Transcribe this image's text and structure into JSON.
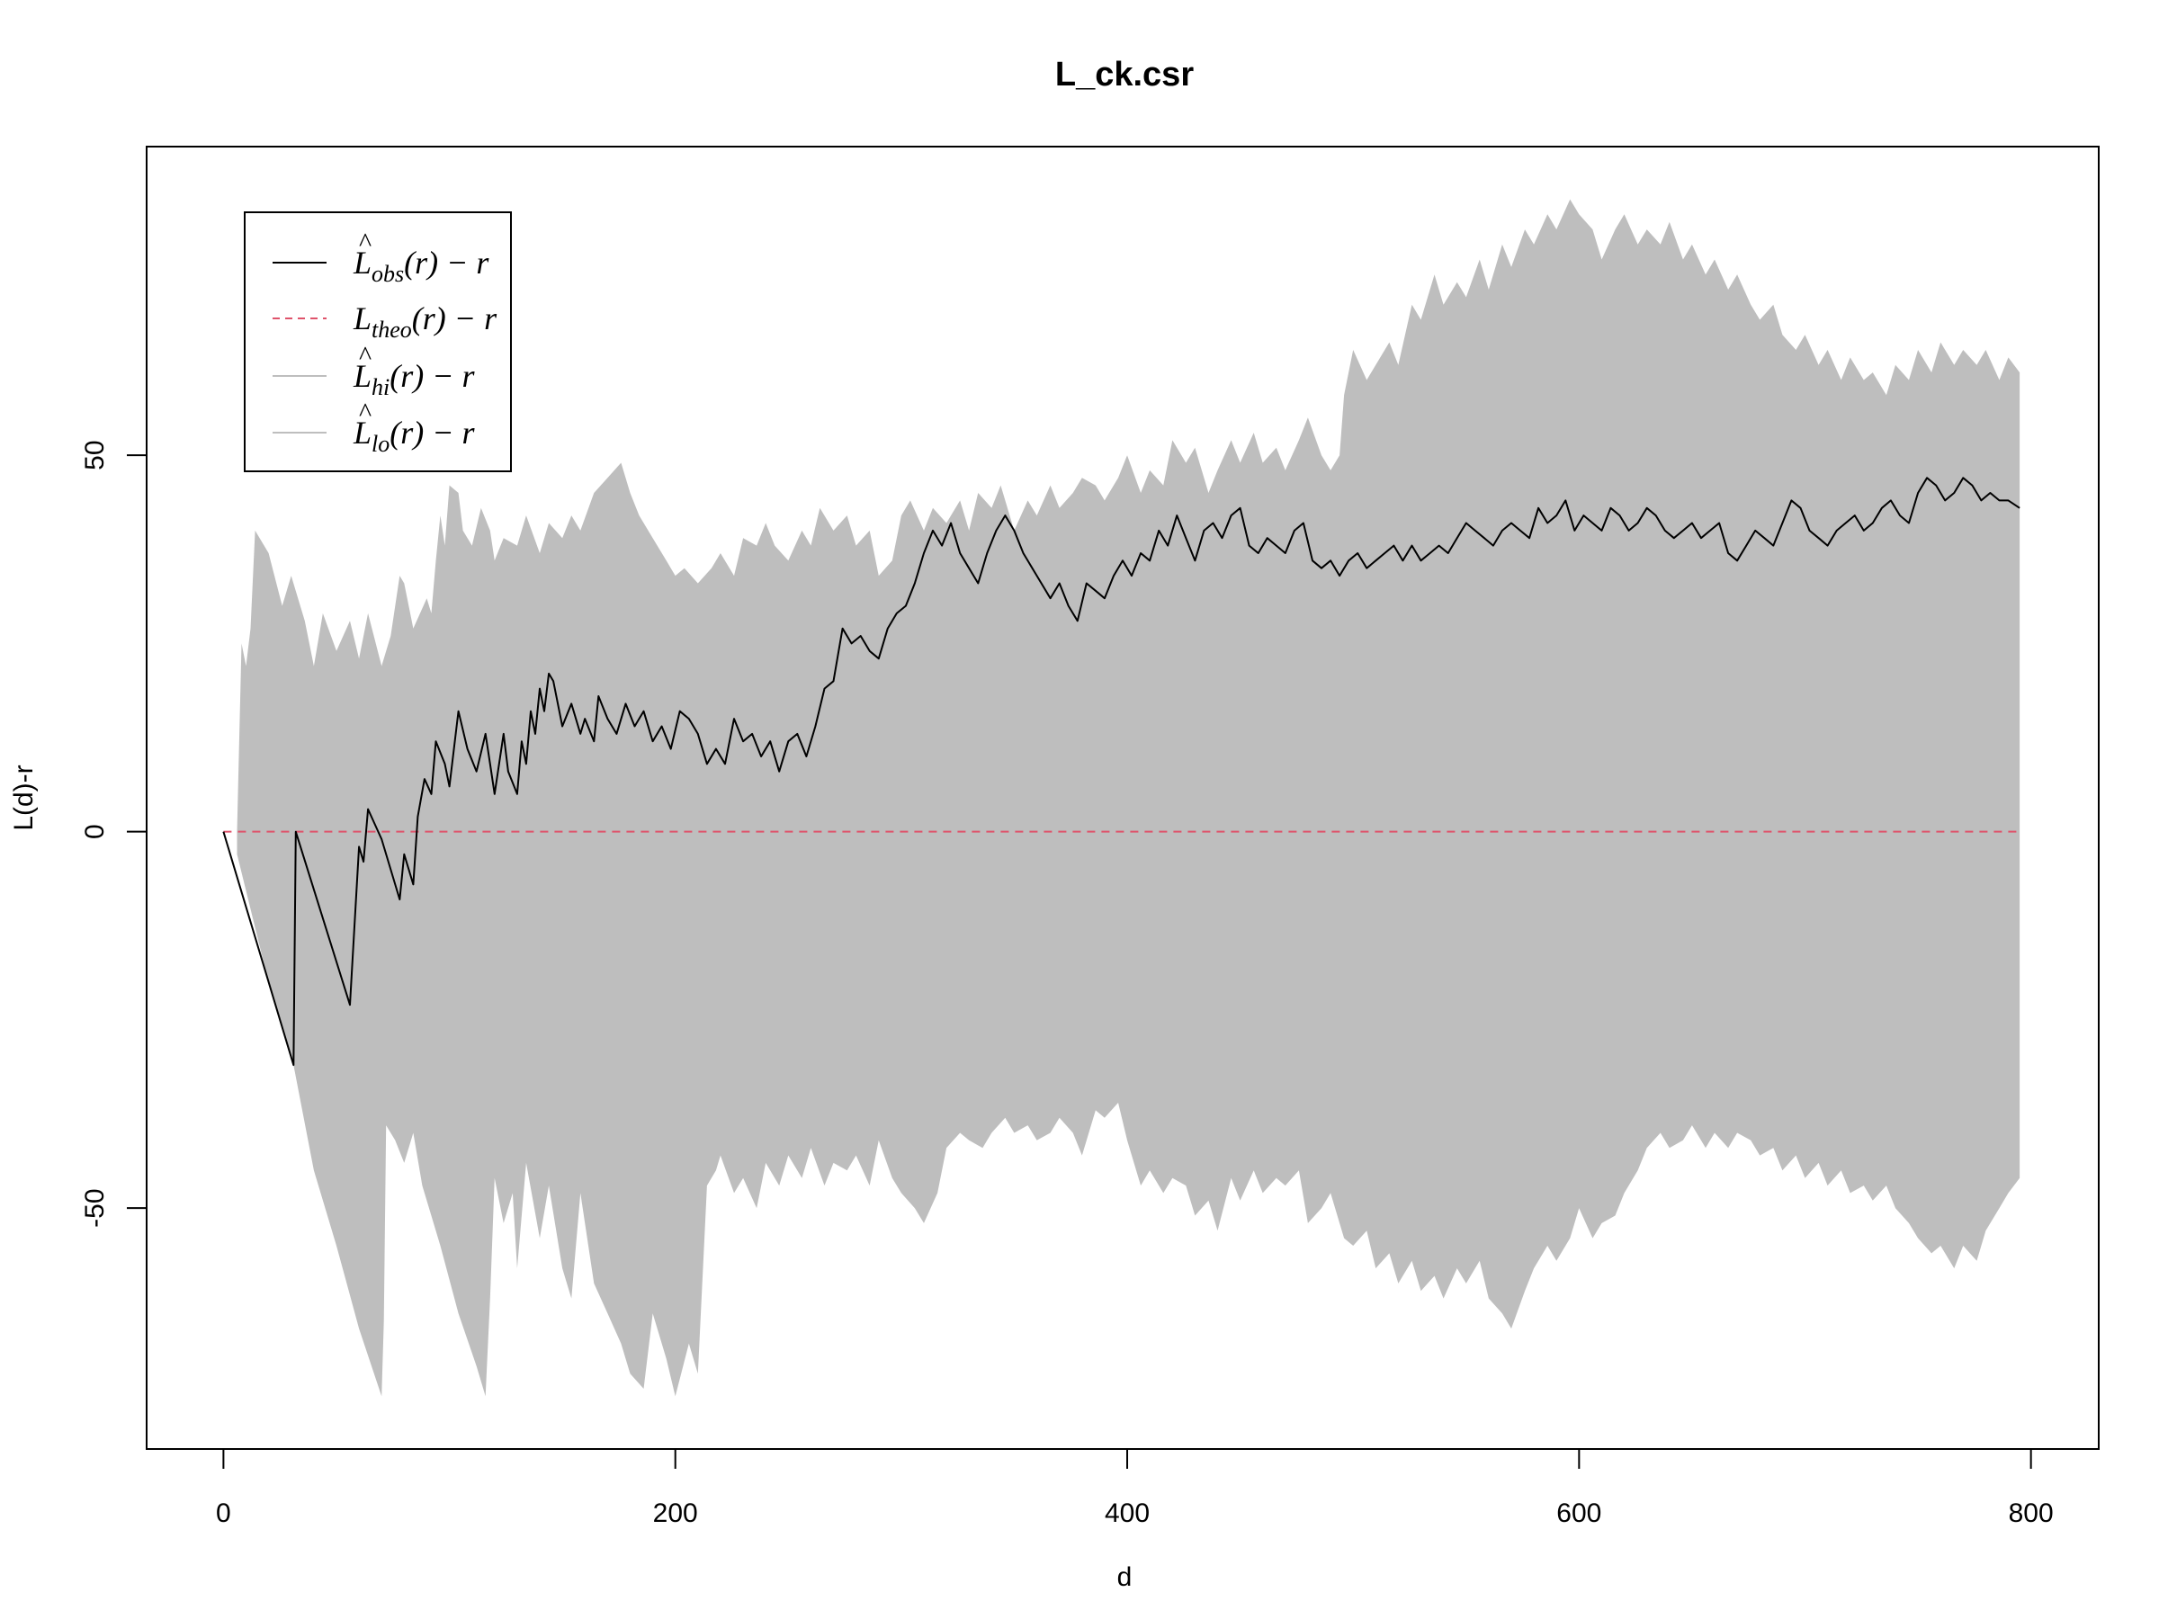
{
  "chart_data": {
    "type": "area",
    "title": "L_ck.csr",
    "xlabel": "d",
    "ylabel": "L(d)-r",
    "xlim": [
      -34,
      830
    ],
    "ylim": [
      -82,
      91
    ],
    "x_ticks": [
      0,
      200,
      400,
      600,
      800
    ],
    "y_ticks": [
      -50,
      0,
      50
    ],
    "legend": {
      "placement": "top-left",
      "entries": [
        {
          "label": "L̂obs(r) − r",
          "main": "L",
          "hat": true,
          "sub": "obs",
          "tail": "(r) − r",
          "color": "#000000",
          "dash": "none"
        },
        {
          "label": "Ltheo(r) − r",
          "main": "L",
          "hat": false,
          "sub": "theo",
          "tail": "(r) − r",
          "color": "#DF536B",
          "dash": "8,6"
        },
        {
          "label": "L̂hi(r) − r",
          "main": "L",
          "hat": true,
          "sub": "hi",
          "tail": "(r) − r",
          "color": "#BEBEBE",
          "dash": "none"
        },
        {
          "label": "L̂lo(r) − r",
          "main": "L",
          "hat": true,
          "sub": "lo",
          "tail": "(r) − r",
          "color": "#BEBEBE",
          "dash": "none"
        }
      ]
    },
    "colors": {
      "obs": "#000000",
      "theo": "#DF536B",
      "envelope": "#BEBEBE"
    },
    "series": [
      {
        "name": "L̂obs(r) − r",
        "x": [
          0,
          31,
          32,
          56,
          60,
          62,
          64,
          70,
          78,
          80,
          84,
          86,
          89,
          92,
          94,
          98,
          100,
          104,
          108,
          112,
          116,
          118,
          120,
          124,
          126,
          130,
          132,
          134,
          136,
          138,
          140,
          142,
          144,
          146,
          150,
          154,
          158,
          160,
          164,
          166,
          170,
          174,
          178,
          182,
          186,
          190,
          194,
          198,
          202,
          206,
          210,
          214,
          218,
          222,
          226,
          230,
          234,
          238,
          242,
          246,
          250,
          254,
          258,
          262,
          266,
          270,
          274,
          278,
          282,
          286,
          290,
          294,
          298,
          302,
          306,
          310,
          314,
          318,
          322,
          326,
          330,
          334,
          338,
          342,
          346,
          350,
          354,
          358,
          362,
          366,
          370,
          374,
          378,
          382,
          386,
          390,
          394,
          398,
          402,
          406,
          410,
          414,
          418,
          422,
          426,
          430,
          434,
          438,
          442,
          446,
          450,
          454,
          458,
          462,
          466,
          470,
          474,
          478,
          482,
          486,
          490,
          494,
          498,
          502,
          506,
          510,
          514,
          518,
          522,
          526,
          530,
          534,
          538,
          542,
          546,
          550,
          554,
          558,
          562,
          566,
          570,
          574,
          578,
          582,
          586,
          590,
          594,
          598,
          602,
          606,
          610,
          614,
          618,
          622,
          626,
          630,
          634,
          638,
          642,
          646,
          650,
          654,
          658,
          662,
          666,
          670,
          674,
          678,
          682,
          686,
          690,
          694,
          698,
          702,
          706,
          710,
          714,
          718,
          722,
          726,
          730,
          734,
          738,
          742,
          746,
          750,
          754,
          758,
          762,
          766,
          770,
          774,
          778,
          782,
          786,
          790,
          795
        ],
        "y": [
          0,
          -31,
          0,
          -23,
          -2,
          -4,
          3,
          -1,
          -9,
          -3,
          -7,
          2,
          7,
          5,
          12,
          9,
          6,
          16,
          11,
          8,
          13,
          9,
          5,
          13,
          8,
          5,
          12,
          9,
          16,
          13,
          19,
          16,
          21,
          20,
          14,
          17,
          13,
          15,
          12,
          18,
          15,
          13,
          17,
          14,
          16,
          12,
          14,
          11,
          16,
          15,
          13,
          9,
          11,
          9,
          15,
          12,
          13,
          10,
          12,
          8,
          12,
          13,
          10,
          14,
          19,
          20,
          27,
          25,
          26,
          24,
          23,
          27,
          29,
          30,
          33,
          37,
          40,
          38,
          41,
          37,
          35,
          33,
          37,
          40,
          42,
          40,
          37,
          35,
          33,
          31,
          33,
          30,
          28,
          33,
          32,
          31,
          34,
          36,
          34,
          37,
          36,
          40,
          38,
          42,
          39,
          36,
          40,
          41,
          39,
          42,
          43,
          38,
          37,
          39,
          38,
          37,
          40,
          41,
          36,
          35,
          36,
          34,
          36,
          37,
          35,
          36,
          37,
          38,
          36,
          38,
          36,
          37,
          38,
          37,
          39,
          41,
          40,
          39,
          38,
          40,
          41,
          40,
          39,
          43,
          41,
          42,
          44,
          40,
          42,
          41,
          40,
          43,
          42,
          40,
          41,
          43,
          42,
          40,
          39,
          40,
          41,
          39,
          40,
          41,
          37,
          36,
          38,
          40,
          39,
          38,
          41,
          44,
          43,
          40,
          39,
          38,
          40,
          41,
          42,
          40,
          41,
          43,
          44,
          42,
          41,
          45,
          47,
          46,
          44,
          45,
          47,
          46,
          44,
          45,
          44,
          44,
          43
        ]
      },
      {
        "name": "Ltheo(r) − r",
        "x": [
          0,
          795
        ],
        "y": [
          0,
          0
        ]
      },
      {
        "name": "L̂hi(r) − r",
        "x": [
          6,
          8,
          10,
          12,
          14,
          20,
          26,
          30,
          36,
          40,
          44,
          50,
          56,
          60,
          64,
          70,
          74,
          78,
          80,
          84,
          90,
          92,
          94,
          96,
          98,
          100,
          104,
          106,
          110,
          114,
          118,
          120,
          124,
          130,
          134,
          140,
          144,
          150,
          154,
          158,
          164,
          170,
          176,
          180,
          184,
          190,
          196,
          200,
          204,
          210,
          216,
          220,
          226,
          230,
          236,
          240,
          244,
          250,
          256,
          260,
          264,
          270,
          276,
          280,
          286,
          290,
          296,
          300,
          304,
          310,
          314,
          320,
          326,
          330,
          334,
          340,
          344,
          350,
          356,
          360,
          366,
          370,
          376,
          380,
          386,
          390,
          396,
          400,
          406,
          410,
          416,
          420,
          426,
          430,
          436,
          440,
          446,
          450,
          456,
          460,
          466,
          470,
          476,
          480,
          486,
          490,
          494,
          496,
          500,
          506,
          510,
          516,
          520,
          526,
          530,
          536,
          540,
          546,
          550,
          556,
          560,
          566,
          570,
          576,
          580,
          586,
          590,
          596,
          600,
          606,
          610,
          616,
          620,
          626,
          630,
          636,
          640,
          646,
          650,
          656,
          660,
          666,
          670,
          676,
          680,
          686,
          690,
          696,
          700,
          706,
          710,
          716,
          720,
          726,
          730,
          736,
          740,
          746,
          750,
          756,
          760,
          766,
          770,
          776,
          780,
          786,
          790,
          795
        ],
        "y": [
          0,
          25,
          22,
          27,
          40,
          37,
          30,
          34,
          28,
          22,
          29,
          24,
          28,
          23,
          29,
          22,
          26,
          34,
          33,
          27,
          31,
          29,
          36,
          42,
          38,
          46,
          45,
          40,
          38,
          43,
          40,
          36,
          39,
          38,
          42,
          37,
          41,
          39,
          42,
          40,
          45,
          47,
          49,
          45,
          42,
          39,
          36,
          34,
          35,
          33,
          35,
          37,
          34,
          39,
          38,
          41,
          38,
          36,
          40,
          38,
          43,
          40,
          42,
          38,
          40,
          34,
          36,
          42,
          44,
          40,
          43,
          41,
          44,
          40,
          45,
          43,
          46,
          40,
          44,
          42,
          46,
          43,
          45,
          47,
          46,
          44,
          47,
          50,
          45,
          48,
          46,
          52,
          49,
          51,
          45,
          48,
          52,
          49,
          53,
          49,
          51,
          48,
          52,
          55,
          50,
          48,
          50,
          58,
          64,
          60,
          62,
          65,
          62,
          70,
          68,
          74,
          70,
          73,
          71,
          76,
          72,
          78,
          75,
          80,
          78,
          82,
          80,
          84,
          82,
          80,
          76,
          80,
          82,
          78,
          80,
          78,
          81,
          76,
          78,
          74,
          76,
          72,
          74,
          70,
          68,
          70,
          66,
          64,
          66,
          62,
          64,
          60,
          63,
          60,
          61,
          58,
          62,
          60,
          64,
          61,
          65,
          62,
          64,
          62,
          64,
          60,
          63,
          61
        ]
      },
      {
        "name": "L̂lo(r) − r",
        "x": [
          6,
          20,
          31,
          40,
          50,
          60,
          70,
          71,
          72,
          76,
          80,
          84,
          88,
          96,
          104,
          112,
          116,
          118,
          120,
          124,
          128,
          130,
          134,
          140,
          144,
          150,
          154,
          158,
          164,
          170,
          176,
          180,
          186,
          190,
          196,
          200,
          206,
          210,
          214,
          218,
          220,
          226,
          230,
          236,
          240,
          246,
          250,
          256,
          260,
          266,
          270,
          276,
          280,
          286,
          290,
          296,
          300,
          306,
          310,
          316,
          320,
          326,
          330,
          336,
          340,
          346,
          350,
          356,
          360,
          366,
          370,
          376,
          380,
          386,
          390,
          396,
          400,
          406,
          410,
          416,
          420,
          426,
          430,
          436,
          440,
          446,
          450,
          456,
          460,
          466,
          470,
          476,
          480,
          486,
          490,
          496,
          500,
          506,
          510,
          516,
          520,
          526,
          530,
          536,
          540,
          546,
          550,
          556,
          560,
          566,
          570,
          576,
          580,
          586,
          590,
          596,
          600,
          606,
          610,
          616,
          620,
          626,
          630,
          636,
          640,
          646,
          650,
          656,
          660,
          666,
          670,
          676,
          680,
          686,
          690,
          696,
          700,
          706,
          710,
          716,
          720,
          726,
          730,
          736,
          740,
          746,
          750,
          756,
          760,
          766,
          770,
          776,
          780,
          786,
          790,
          795
        ],
        "y": [
          -3,
          -20,
          -31,
          -45,
          -55,
          -66,
          -75,
          -65,
          -39,
          -41,
          -44,
          -40,
          -47,
          -55,
          -64,
          -71,
          -75,
          -62,
          -46,
          -52,
          -48,
          -58,
          -44,
          -54,
          -47,
          -58,
          -62,
          -48,
          -60,
          -64,
          -68,
          -72,
          -74,
          -64,
          -70,
          -75,
          -68,
          -72,
          -47,
          -45,
          -43,
          -48,
          -46,
          -50,
          -44,
          -47,
          -43,
          -46,
          -42,
          -47,
          -44,
          -45,
          -43,
          -47,
          -41,
          -46,
          -48,
          -50,
          -52,
          -48,
          -42,
          -40,
          -41,
          -42,
          -40,
          -38,
          -40,
          -39,
          -41,
          -40,
          -38,
          -40,
          -43,
          -37,
          -38,
          -36,
          -41,
          -47,
          -45,
          -48,
          -46,
          -47,
          -51,
          -49,
          -53,
          -46,
          -49,
          -45,
          -48,
          -46,
          -47,
          -45,
          -52,
          -50,
          -48,
          -54,
          -55,
          -53,
          -58,
          -56,
          -60,
          -57,
          -61,
          -59,
          -62,
          -58,
          -60,
          -57,
          -62,
          -64,
          -66,
          -61,
          -58,
          -55,
          -57,
          -54,
          -50,
          -54,
          -52,
          -51,
          -48,
          -45,
          -42,
          -40,
          -42,
          -41,
          -39,
          -42,
          -40,
          -42,
          -40,
          -41,
          -43,
          -42,
          -45,
          -43,
          -46,
          -44,
          -47,
          -45,
          -48,
          -47,
          -49,
          -47,
          -50,
          -52,
          -54,
          -56,
          -55,
          -58,
          -55,
          -57,
          -53,
          -50,
          -48,
          -46
        ]
      }
    ]
  }
}
